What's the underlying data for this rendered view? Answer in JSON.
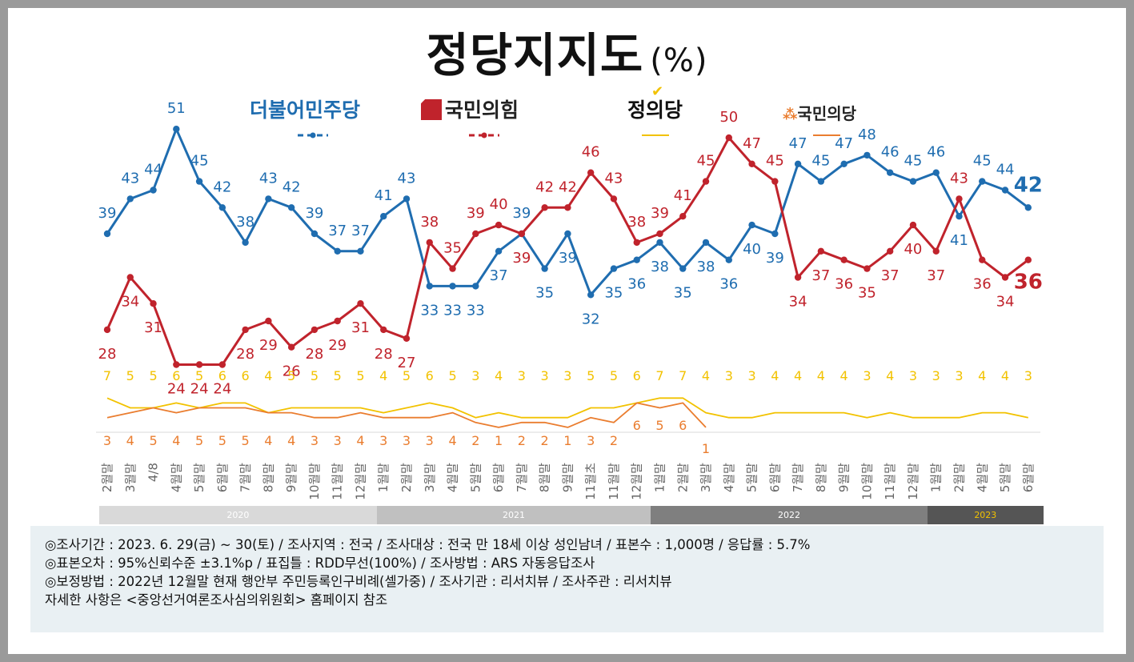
{
  "title": "정당지지도",
  "title_unit": "(%)",
  "legend": [
    {
      "label": "더불어민주당",
      "color": "#1f6db0"
    },
    {
      "label": "국민의힘",
      "color": "#c0232c"
    },
    {
      "label": "정의당",
      "color": "#f2c200"
    },
    {
      "label": "국민의당",
      "color": "#ea7d2f"
    }
  ],
  "chart_data": {
    "type": "line",
    "title": "정당지지도",
    "x": [
      "2월말",
      "3월말",
      "4/8",
      "4월말",
      "5월말",
      "6월말",
      "7월말",
      "8월말",
      "9월말",
      "10월말",
      "11월말",
      "12월말",
      "1월말",
      "2월말",
      "3월말",
      "4월말",
      "5월말",
      "6월말",
      "7월말",
      "8월말",
      "9월말",
      "11월초",
      "11월말",
      "12월말",
      "1월말",
      "2월말",
      "3월말",
      "4월말",
      "5월말",
      "6월말",
      "7월말",
      "8월말",
      "9월말",
      "10월말",
      "11월말",
      "12월말",
      "1월말",
      "2월말",
      "4월말",
      "5월말",
      "6월말"
    ],
    "series": [
      {
        "name": "더불어민주당",
        "color": "#1f6db0",
        "values": [
          39,
          43,
          44,
          51,
          45,
          42,
          38,
          43,
          42,
          39,
          37,
          37,
          41,
          43,
          33,
          33,
          33,
          37,
          39,
          35,
          39,
          32,
          35,
          36,
          38,
          35,
          38,
          36,
          40,
          39,
          47,
          45,
          47,
          48,
          46,
          45,
          46,
          41,
          45,
          44,
          42
        ]
      },
      {
        "name": "국민의힘",
        "color": "#c0232c",
        "values": [
          28,
          34,
          31,
          24,
          24,
          24,
          28,
          29,
          26,
          28,
          29,
          31,
          28,
          27,
          38,
          35,
          39,
          40,
          39,
          42,
          42,
          46,
          43,
          38,
          39,
          41,
          45,
          50,
          47,
          45,
          34,
          37,
          36,
          35,
          37,
          40,
          37,
          43,
          36,
          34,
          36
        ]
      },
      {
        "name": "정의당",
        "color": "#f2c200",
        "values": [
          7,
          5,
          5,
          6,
          5,
          6,
          6,
          4,
          5,
          5,
          5,
          5,
          4,
          5,
          6,
          5,
          3,
          4,
          3,
          3,
          3,
          5,
          5,
          6,
          7,
          7,
          4,
          3,
          3,
          4,
          4,
          4,
          4,
          3,
          4,
          3,
          3,
          3,
          4,
          4,
          3
        ]
      },
      {
        "name": "국민의당",
        "color": "#ea7d2f",
        "values": [
          3,
          4,
          5,
          4,
          5,
          5,
          5,
          4,
          4,
          3,
          3,
          4,
          3,
          3,
          3,
          4,
          2,
          1,
          2,
          2,
          1,
          3,
          2,
          6,
          5,
          6,
          1,
          null,
          null,
          null,
          null,
          null,
          null,
          null,
          null,
          null,
          null,
          null,
          null,
          null,
          null
        ]
      }
    ],
    "years": [
      {
        "label": "2020",
        "color": "#d9d9d9",
        "text_color": "#ffffff",
        "from": 0,
        "to": 12
      },
      {
        "label": "2021",
        "color": "#c0c0c0",
        "text_color": "#ffffff",
        "from": 12,
        "to": 24
      },
      {
        "label": "2022",
        "color": "#7f7f7f",
        "text_color": "#ffffff",
        "from": 24,
        "to": 36
      },
      {
        "label": "2023",
        "color": "#555555",
        "text_color": "#f2c200",
        "from": 36,
        "to": 41
      }
    ]
  },
  "notes": [
    "◎조사기간 : 2023. 6. 29(금) ~ 30(토) / 조사지역 : 전국 / 조사대상 : 전국 만 18세 이상 성인남녀 / 표본수 : 1,000명 / 응답률 : 5.7%",
    "◎표본오차 : 95%신뢰수준 ±3.1%p  / 표집틀 : RDD무선(100%) / 조사방법 : ARS 자동응답조사",
    "◎보정방법 : 2022년 12월말 현재 행안부 주민등록인구비례(셀가중) / 조사기관 : 리서치뷰 / 조사주관 : 리서치뷰",
    "자세한 사항은 <중앙선거여론조사심의위원회> 홈페이지 참조"
  ]
}
